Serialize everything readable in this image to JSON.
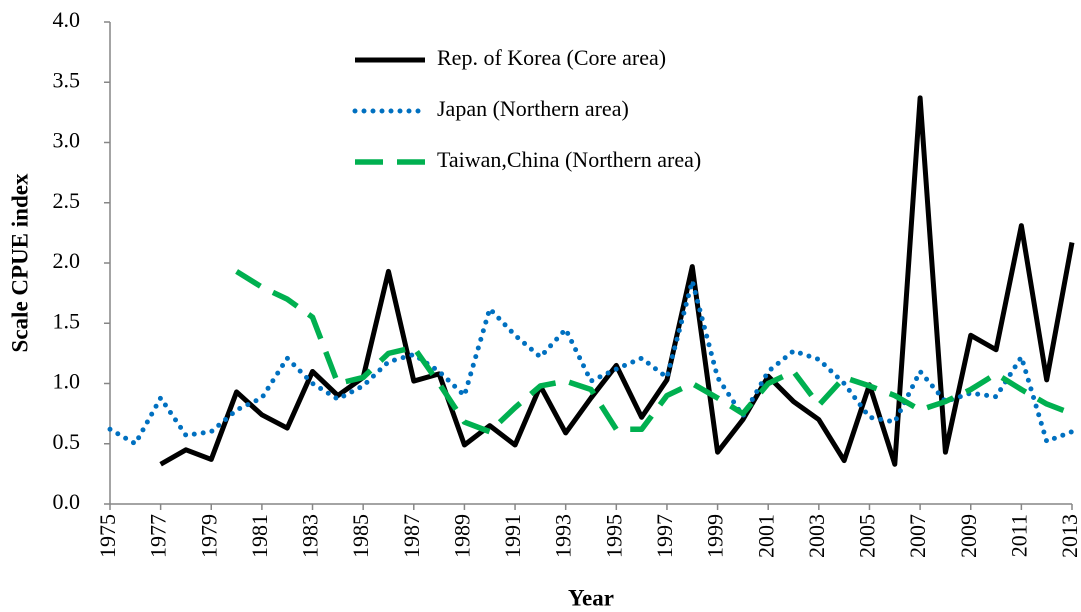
{
  "chart_data": {
    "type": "line",
    "y_label": "Scale CPUE index",
    "x_label": "Year",
    "x": [
      1975,
      1976,
      1977,
      1978,
      1979,
      1980,
      1981,
      1982,
      1983,
      1984,
      1985,
      1986,
      1987,
      1988,
      1989,
      1990,
      1991,
      1992,
      1993,
      1994,
      1995,
      1996,
      1997,
      1998,
      1999,
      2000,
      2001,
      2002,
      2003,
      2004,
      2005,
      2006,
      2007,
      2008,
      2009,
      2010,
      2011,
      2012,
      2013
    ],
    "xlim": [
      1975,
      2013
    ],
    "xticks": [
      1975,
      1977,
      1979,
      1981,
      1983,
      1985,
      1987,
      1989,
      1991,
      1993,
      1995,
      1997,
      1999,
      2001,
      2003,
      2005,
      2007,
      2009,
      2011,
      2013
    ],
    "ylim": [
      0,
      4
    ],
    "yticks": [
      {
        "value": 0,
        "label": "0.0"
      },
      {
        "value": 0.5,
        "label": "0.5"
      },
      {
        "value": 1,
        "label": "1.0"
      },
      {
        "value": 1.5,
        "label": "1.5"
      },
      {
        "value": 2,
        "label": "2.0"
      },
      {
        "value": 2.5,
        "label": "2.5"
      },
      {
        "value": 3,
        "label": "3.0"
      },
      {
        "value": 3.5,
        "label": "3.5"
      },
      {
        "value": 4,
        "label": "4.0"
      }
    ],
    "grid": false,
    "series": [
      {
        "name": "Rep. of Korea (Core area)",
        "color": "#000000",
        "style": "solid",
        "values": [
          null,
          null,
          0.33,
          0.45,
          0.37,
          0.93,
          0.74,
          0.63,
          1.1,
          0.9,
          1.05,
          1.93,
          1.02,
          1.08,
          0.49,
          0.65,
          0.49,
          0.98,
          0.59,
          0.88,
          1.15,
          0.72,
          1.03,
          1.97,
          0.43,
          0.7,
          1.06,
          0.85,
          0.7,
          0.36,
          0.99,
          0.33,
          3.37,
          0.43,
          1.4,
          1.28,
          2.31,
          1.03,
          2.17
        ]
      },
      {
        "name": "Japan (Northern area)",
        "color": "#0070c0",
        "style": "dotted",
        "values": [
          0.62,
          0.5,
          0.88,
          0.57,
          0.6,
          0.78,
          0.88,
          1.21,
          1.0,
          0.87,
          0.98,
          1.18,
          1.24,
          1.1,
          0.9,
          1.62,
          1.4,
          1.22,
          1.45,
          1.02,
          1.12,
          1.21,
          1.05,
          1.85,
          1.05,
          0.73,
          1.1,
          1.27,
          1.2,
          1.0,
          0.72,
          0.68,
          1.1,
          0.85,
          0.92,
          0.89,
          1.22,
          0.52,
          0.6
        ]
      },
      {
        "name": "Taiwan,China (Northern area)",
        "color": "#00b050",
        "style": "dashed",
        "values": [
          null,
          null,
          null,
          null,
          null,
          1.93,
          1.8,
          1.7,
          1.55,
          1.0,
          1.05,
          1.25,
          1.3,
          1.0,
          0.68,
          0.6,
          0.8,
          0.98,
          1.02,
          0.95,
          0.62,
          0.62,
          0.9,
          1.0,
          0.88,
          0.75,
          1.0,
          1.1,
          0.82,
          1.05,
          0.98,
          0.9,
          0.78,
          0.85,
          0.95,
          1.08,
          0.95,
          0.83,
          0.75
        ]
      }
    ]
  }
}
